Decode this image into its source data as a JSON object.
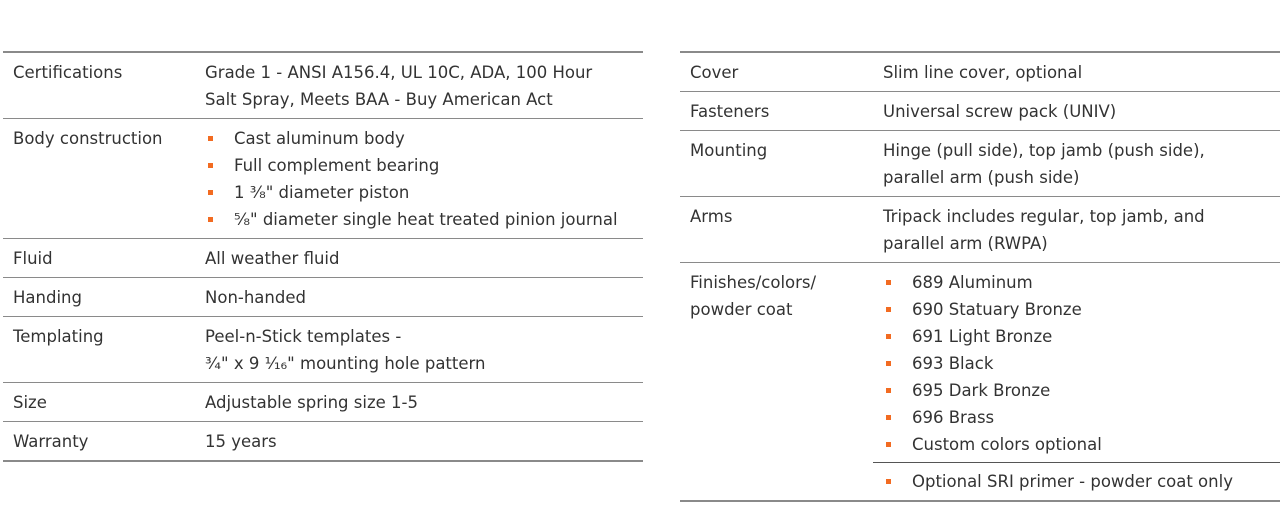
{
  "left_table": [
    {
      "label": "Certifications",
      "lines": [
        "Grade 1 - ANSI A156.4, UL 10C, ADA, 100 Hour",
        "Salt Spray, Meets BAA - Buy American Act"
      ]
    },
    {
      "label": "Body construction",
      "bullets": [
        "Cast aluminum body",
        "Full complement bearing",
        "1 ³⁄₈\" diameter piston",
        "⁵⁄₈\" diameter single heat treated pinion journal"
      ]
    },
    {
      "label": "Fluid",
      "lines": [
        "All weather fluid"
      ]
    },
    {
      "label": "Handing",
      "lines": [
        "Non-handed"
      ]
    },
    {
      "label": "Templating",
      "lines": [
        "Peel-n-Stick templates -",
        "³⁄₄\" x 9 ¹⁄₁₆\" mounting hole pattern"
      ]
    },
    {
      "label": "Size",
      "lines": [
        "Adjustable spring size 1-5"
      ]
    },
    {
      "label": "Warranty",
      "lines": [
        "15 years"
      ]
    }
  ],
  "right_table": [
    {
      "label": "Cover",
      "lines": [
        "Slim line cover, optional"
      ]
    },
    {
      "label": "Fasteners",
      "lines": [
        "Universal screw pack (UNIV)"
      ]
    },
    {
      "label": "Mounting",
      "lines": [
        "Hinge (pull side), top jamb (push side),",
        "parallel arm (push side)"
      ]
    },
    {
      "label": "Arms",
      "lines": [
        "Tripack includes regular, top jamb, and",
        "parallel arm (RWPA)"
      ]
    },
    {
      "label": "Finishes/colors/ powder coat",
      "bullets": [
        "689 Aluminum",
        "690 Statuary Bronze",
        "691 Light Bronze",
        "693 Black",
        "695 Dark Bronze",
        "696 Brass",
        "Custom colors optional"
      ],
      "sub_bullets": [
        "Optional SRI primer - powder coat only"
      ]
    }
  ],
  "colors": {
    "bullet": "#f26b21",
    "rule": "#8a8a8a",
    "text": "#333333"
  }
}
